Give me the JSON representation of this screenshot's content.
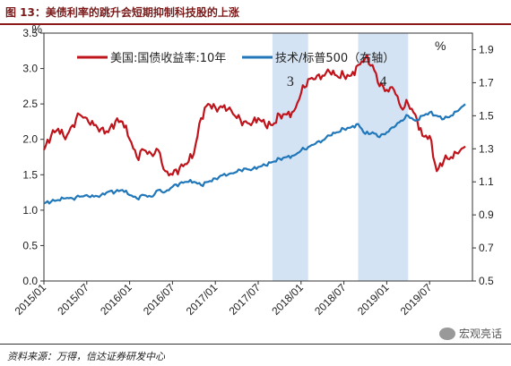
{
  "header": {
    "title": "图 13：美债利率的跳升会短期抑制科技股的上涨"
  },
  "footer": {
    "source": "资料来源：万得，信达证券研发中心",
    "watermark": "宏观亮话"
  },
  "colors": {
    "treasury": "#c0141c",
    "ratio": "#2077b9",
    "shade": "#c5d9ef",
    "title": "#8b1a1a"
  },
  "chart_data": {
    "type": "line",
    "title": "",
    "x_ticks": [
      "2015/01",
      "2015/07",
      "2016/01",
      "2016/07",
      "2017/01",
      "2017/07",
      "2018/01",
      "2018/07",
      "2019/01",
      "2019/07"
    ],
    "y_left": {
      "unit": "%",
      "lim": [
        0,
        3.5
      ],
      "ticks": [
        "0.0",
        "0.5",
        "1.0",
        "1.5",
        "2.0",
        "2.5",
        "3.0",
        "3.5"
      ]
    },
    "y_right": {
      "unit": "%",
      "lim": [
        0.5,
        2.0
      ],
      "ticks": [
        "0.5",
        "0.7",
        "0.9",
        "1.1",
        "1.3",
        "1.5",
        "1.7",
        "1.9"
      ]
    },
    "legend_position": "top",
    "shaded_periods": [
      {
        "label": "3",
        "from": "2017/09",
        "to": "2018/02"
      },
      {
        "label": "4",
        "from": "2018/09",
        "to": "2019/04"
      }
    ],
    "series": [
      {
        "name": "美国:国债收益率:10年",
        "axis": "left",
        "x": [
          "2015/01",
          "2015/02",
          "2015/03",
          "2015/04",
          "2015/05",
          "2015/06",
          "2015/07",
          "2015/08",
          "2015/09",
          "2015/10",
          "2015/11",
          "2015/12",
          "2016/01",
          "2016/02",
          "2016/03",
          "2016/04",
          "2016/05",
          "2016/06",
          "2016/07",
          "2016/08",
          "2016/09",
          "2016/10",
          "2016/11",
          "2016/12",
          "2017/01",
          "2017/02",
          "2017/03",
          "2017/04",
          "2017/05",
          "2017/06",
          "2017/07",
          "2017/08",
          "2017/09",
          "2017/10",
          "2017/11",
          "2017/12",
          "2018/01",
          "2018/02",
          "2018/03",
          "2018/04",
          "2018/05",
          "2018/06",
          "2018/07",
          "2018/08",
          "2018/09",
          "2018/10",
          "2018/11",
          "2018/12",
          "2019/01",
          "2019/02",
          "2019/03",
          "2019/04",
          "2019/05",
          "2019/06",
          "2019/07",
          "2019/08",
          "2019/09",
          "2019/10",
          "2019/11",
          "2019/12"
        ],
        "values": [
          1.85,
          2.05,
          2.15,
          2.0,
          2.2,
          2.35,
          2.3,
          2.2,
          2.15,
          2.1,
          2.25,
          2.25,
          2.0,
          1.75,
          1.85,
          1.8,
          1.85,
          1.55,
          1.5,
          1.6,
          1.65,
          1.8,
          2.3,
          2.5,
          2.45,
          2.45,
          2.45,
          2.3,
          2.25,
          2.2,
          2.3,
          2.2,
          2.2,
          2.35,
          2.35,
          2.4,
          2.65,
          2.85,
          2.85,
          2.9,
          2.95,
          2.9,
          2.9,
          2.9,
          3.05,
          3.15,
          3.05,
          2.75,
          2.7,
          2.7,
          2.45,
          2.5,
          2.35,
          2.05,
          2.05,
          1.55,
          1.7,
          1.75,
          1.8,
          1.9
        ]
      },
      {
        "name": "技术/标普500（右轴）",
        "axis": "right",
        "x": [
          "2015/01",
          "2015/02",
          "2015/03",
          "2015/04",
          "2015/05",
          "2015/06",
          "2015/07",
          "2015/08",
          "2015/09",
          "2015/10",
          "2015/11",
          "2015/12",
          "2016/01",
          "2016/02",
          "2016/03",
          "2016/04",
          "2016/05",
          "2016/06",
          "2016/07",
          "2016/08",
          "2016/09",
          "2016/10",
          "2016/11",
          "2016/12",
          "2017/01",
          "2017/02",
          "2017/03",
          "2017/04",
          "2017/05",
          "2017/06",
          "2017/07",
          "2017/08",
          "2017/09",
          "2017/10",
          "2017/11",
          "2017/12",
          "2018/01",
          "2018/02",
          "2018/03",
          "2018/04",
          "2018/05",
          "2018/06",
          "2018/07",
          "2018/08",
          "2018/09",
          "2018/10",
          "2018/11",
          "2018/12",
          "2019/01",
          "2019/02",
          "2019/03",
          "2019/04",
          "2019/05",
          "2019/06",
          "2019/07",
          "2019/08",
          "2019/09",
          "2019/10",
          "2019/11",
          "2019/12"
        ],
        "values": [
          0.97,
          0.98,
          0.99,
          1.0,
          1.0,
          1.01,
          1.02,
          1.01,
          1.02,
          1.04,
          1.04,
          1.05,
          1.02,
          1.0,
          1.02,
          1.01,
          1.05,
          1.04,
          1.07,
          1.09,
          1.1,
          1.1,
          1.08,
          1.1,
          1.12,
          1.14,
          1.15,
          1.16,
          1.18,
          1.17,
          1.19,
          1.2,
          1.22,
          1.24,
          1.25,
          1.26,
          1.29,
          1.31,
          1.33,
          1.35,
          1.38,
          1.4,
          1.42,
          1.43,
          1.45,
          1.39,
          1.4,
          1.37,
          1.4,
          1.43,
          1.47,
          1.5,
          1.47,
          1.5,
          1.52,
          1.5,
          1.48,
          1.5,
          1.53,
          1.57
        ]
      }
    ],
    "annotations": [
      "3",
      "4"
    ]
  }
}
